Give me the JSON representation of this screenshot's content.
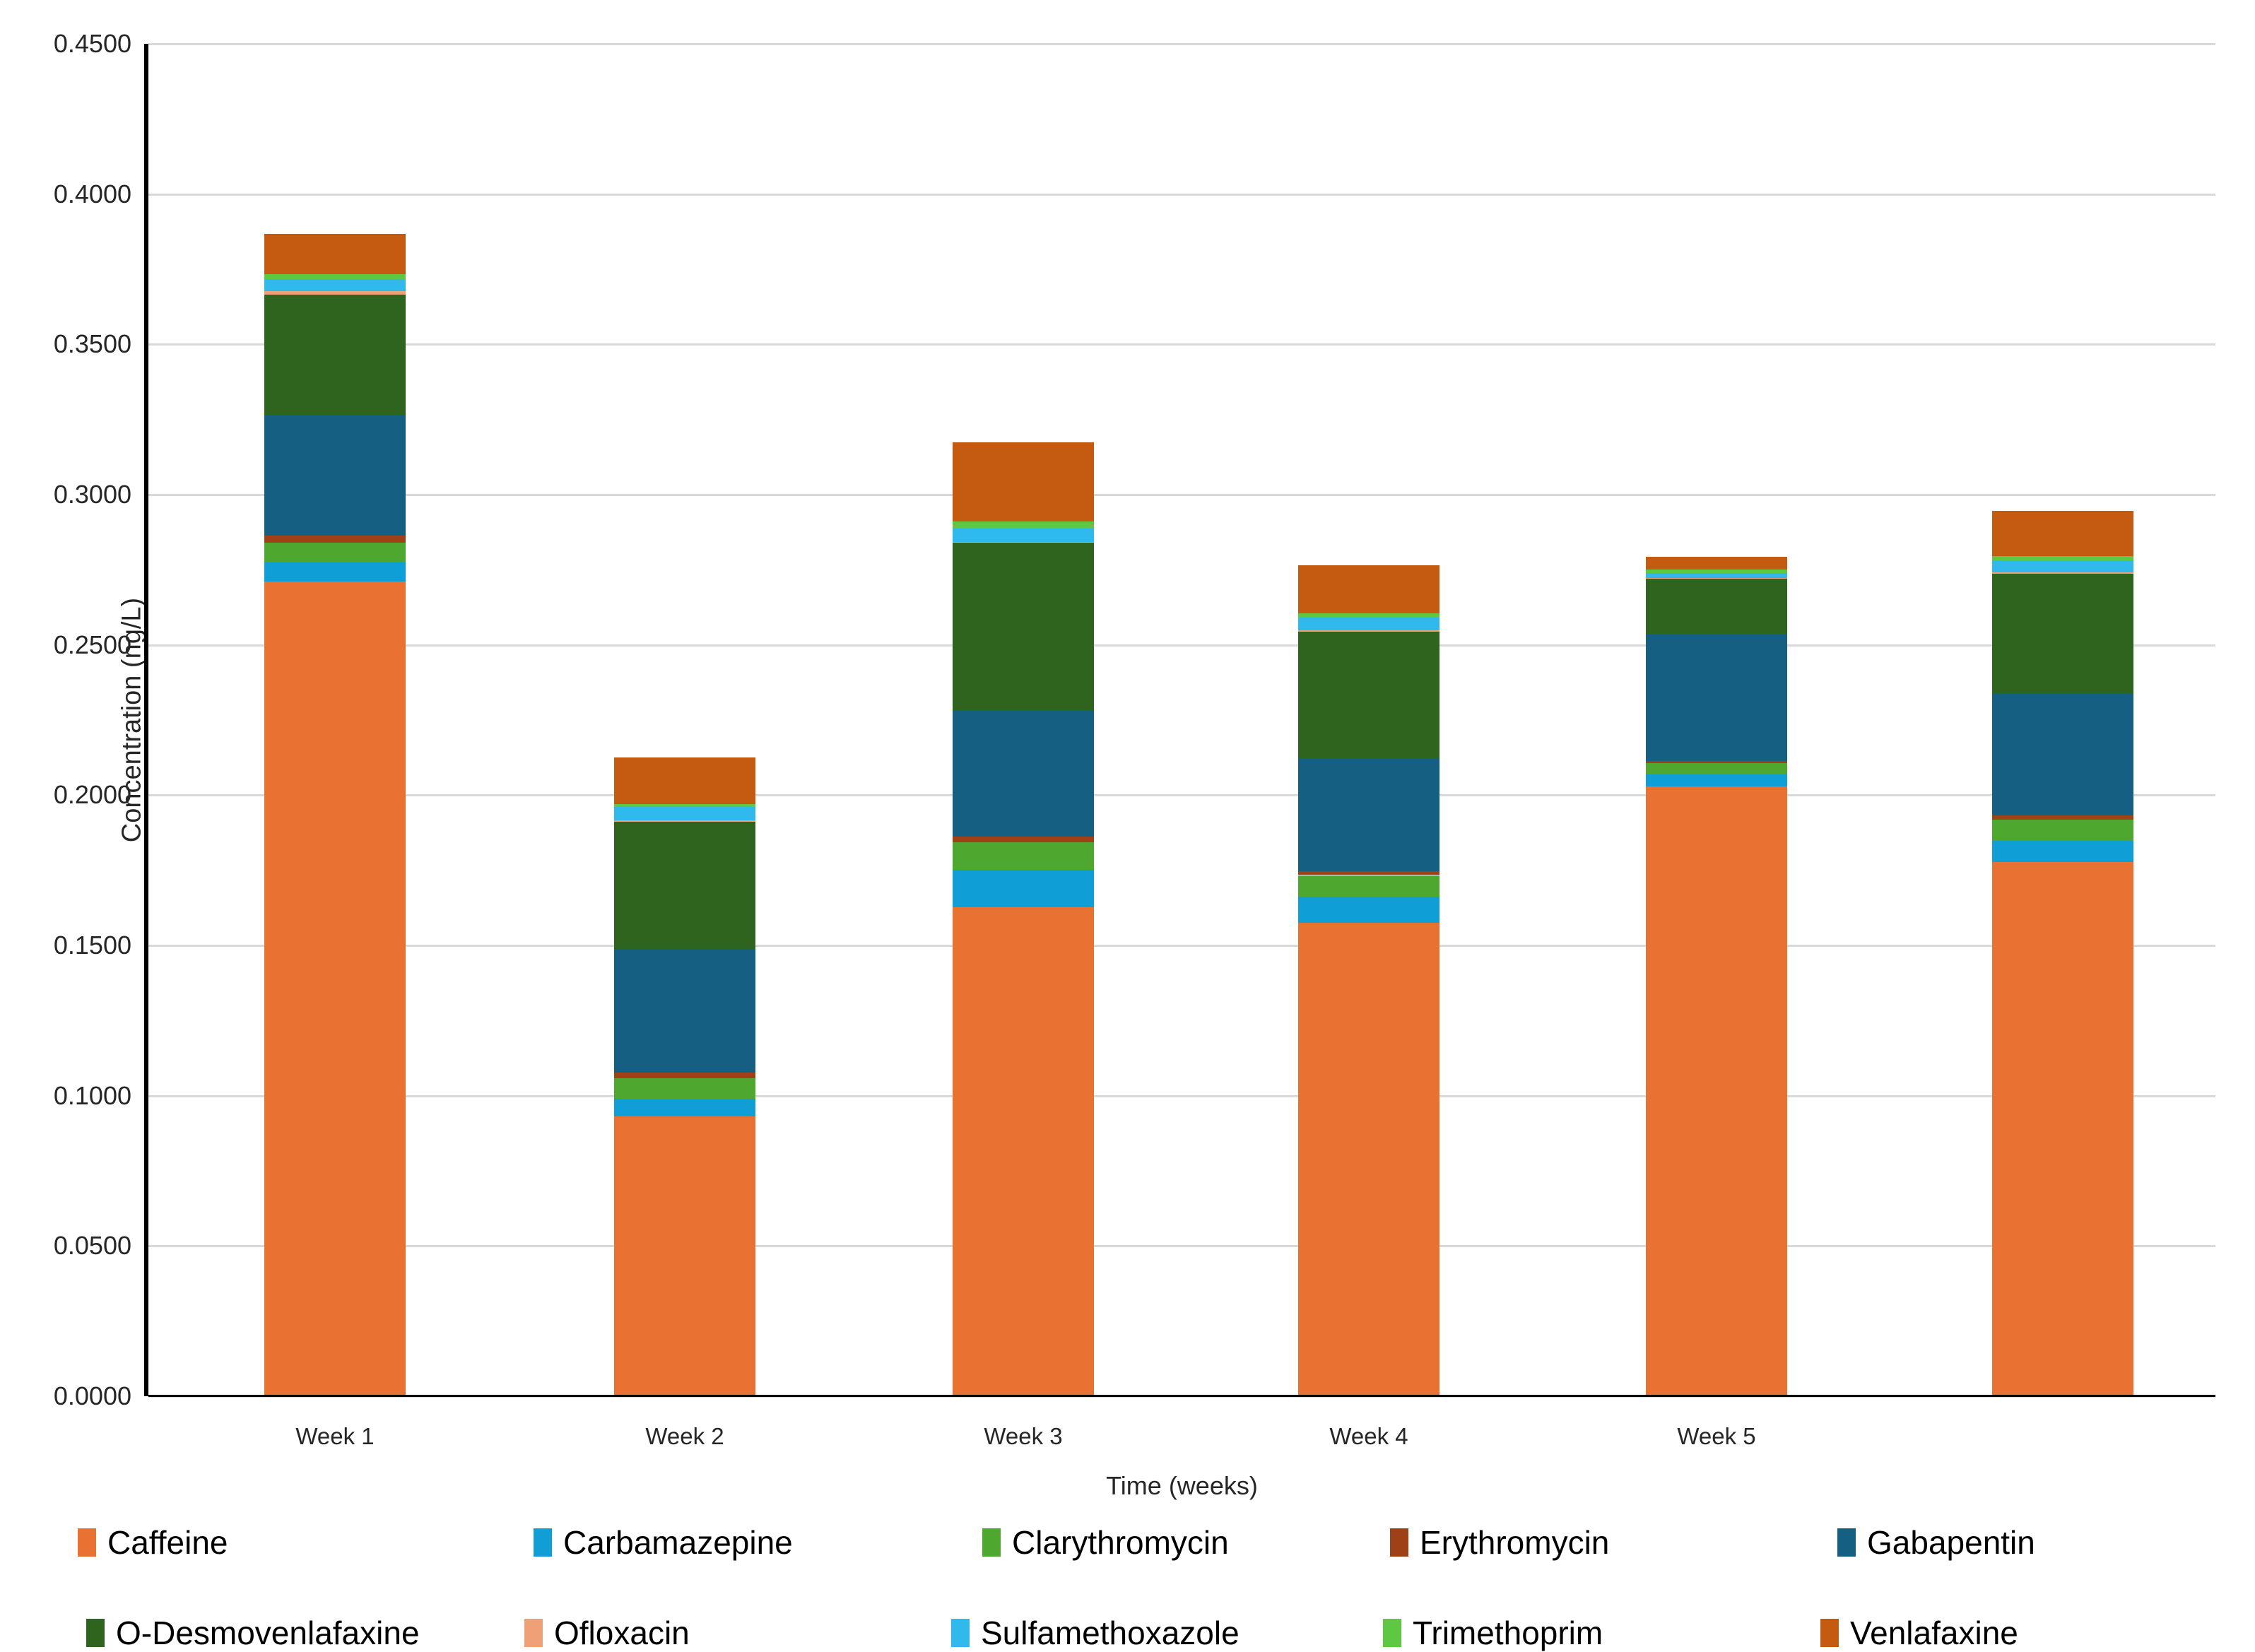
{
  "chart_data": {
    "type": "bar",
    "stacked": true,
    "xlabel": "Time (weeks)",
    "ylabel": "Concentration (ng/L)",
    "ylim": [
      0,
      0.45
    ],
    "ytick_step": 0.05,
    "ytick_labels": [
      "0.4500",
      "0.4000",
      "0.3500",
      "0.3000",
      "0.2500",
      "0.2000",
      "0.1500",
      "0.1000",
      "0.0500",
      "0.0000"
    ],
    "grid": true,
    "legend_position": "bottom",
    "categories": [
      "Week 1",
      "Week 2",
      "Week 3",
      "Week 4",
      "Week 5",
      ""
    ],
    "series": [
      {
        "name": "Caffeine",
        "color": "#E97132",
        "values": [
          0.2711,
          0.0932,
          0.1628,
          0.1575,
          0.203,
          0.1778
        ]
      },
      {
        "name": "Carbamazepine",
        "color": "#0F9ED5",
        "values": [
          0.0064,
          0.0059,
          0.0123,
          0.0087,
          0.0039,
          0.007
        ]
      },
      {
        "name": "Clarythromycin",
        "color": "#4EA72E",
        "values": [
          0.0066,
          0.0066,
          0.0092,
          0.0072,
          0.0037,
          0.007
        ]
      },
      {
        "name": "Erythromycin",
        "color": "#9E4116",
        "values": [
          0.0023,
          0.0021,
          0.002,
          0.0014,
          0.0008,
          0.0014
        ]
      },
      {
        "name": "Gabapentin",
        "color": "#156082",
        "values": [
          0.0402,
          0.041,
          0.042,
          0.0375,
          0.0424,
          0.0408
        ]
      },
      {
        "name": "O-Desmovenlafaxine",
        "color": "#2F641E",
        "values": [
          0.0399,
          0.0424,
          0.0556,
          0.0422,
          0.0182,
          0.0397
        ]
      },
      {
        "name": "Ofloxacin",
        "color": "#F0A077",
        "values": [
          0.0011,
          0.0004,
          0.0004,
          0.0004,
          0.0003,
          0.0004
        ]
      },
      {
        "name": "Sulfamethoxazole",
        "color": "#2FB9EC",
        "values": [
          0.0042,
          0.0045,
          0.0045,
          0.0043,
          0.0015,
          0.0041
        ]
      },
      {
        "name": "Trimethoprim",
        "color": "#5EC843",
        "values": [
          0.0016,
          0.001,
          0.0022,
          0.0013,
          0.0012,
          0.0013
        ]
      },
      {
        "name": "Venlafaxine",
        "color": "#C55A11",
        "values": [
          0.0134,
          0.0154,
          0.0263,
          0.0161,
          0.0044,
          0.015
        ]
      }
    ],
    "totals": [
      0.3868,
      0.2125,
      0.3173,
      0.2766,
      0.2794,
      0.2945
    ]
  },
  "colors": {
    "gridline": "#D9D9D9",
    "axis": "#000000",
    "background": "#FFFFFF"
  }
}
